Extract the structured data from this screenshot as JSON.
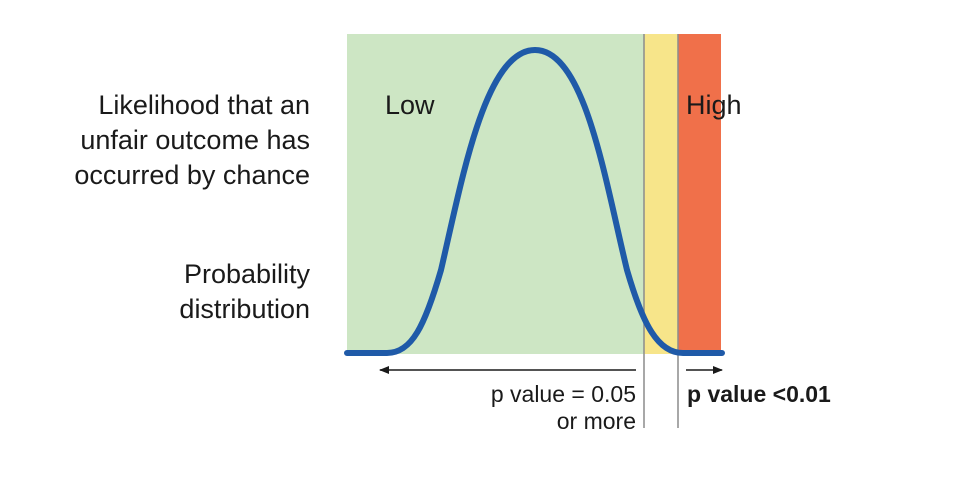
{
  "labels": {
    "likelihood": [
      "Likelihood that an",
      "unfair outcome has",
      "occurred by chance"
    ],
    "probability": [
      "Probability",
      "distribution"
    ],
    "low": "Low",
    "high": "High",
    "p_left": [
      "p value = 0.05",
      "or more"
    ],
    "p_right": "p value <0.01"
  },
  "colors": {
    "low_zone": "#cde6c4",
    "mid_zone": "#f7e58a",
    "high_zone": "#f0704a",
    "curve": "#1f5aa8",
    "divider": "#8c8c8c",
    "text": "#1a1a1a"
  }
}
